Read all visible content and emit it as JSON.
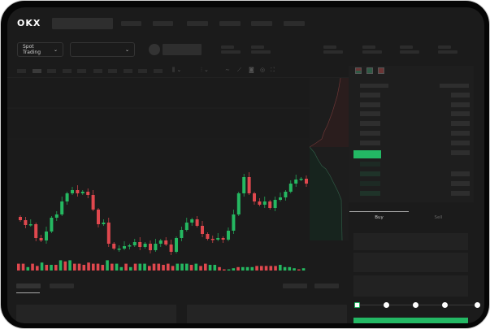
{
  "header": {
    "logo": "OKX"
  },
  "market_select": {
    "label": "Spot Trading"
  },
  "trade_tabs": {
    "buy": "Buy",
    "sell": "Sell"
  },
  "colors": {
    "up": "#25b861",
    "down": "#e0484e",
    "background": "#1b1b1b",
    "accent": "#23b864"
  },
  "chart": {
    "type": "candlestick",
    "closes": [
      117,
      111,
      112,
      95,
      92,
      103,
      120,
      124,
      140,
      150,
      154,
      150,
      152,
      148,
      130,
      112,
      114,
      88,
      82,
      82,
      85,
      86,
      90,
      84,
      88,
      80,
      88,
      92,
      87,
      78,
      95,
      105,
      114,
      118,
      110,
      100,
      94,
      93,
      95,
      93,
      104,
      124,
      150,
      170,
      150,
      140,
      136,
      140,
      132,
      142,
      145,
      152,
      162,
      167,
      168,
      162
    ],
    "volume": [
      6,
      6,
      3,
      6,
      4,
      7,
      5,
      5,
      5,
      9,
      8,
      9,
      6,
      6,
      5,
      7,
      6,
      6,
      5,
      9,
      6,
      6,
      3,
      6,
      3,
      6,
      6,
      6,
      4,
      6,
      6,
      5,
      6,
      4,
      6,
      6,
      6,
      5,
      6,
      4,
      6,
      5,
      5,
      3,
      1,
      1,
      2,
      3,
      3,
      3,
      3,
      4,
      4,
      4,
      4,
      4,
      5,
      3,
      3,
      2,
      1,
      2
    ],
    "volume_dir": [
      "d",
      "d",
      "u",
      "d",
      "d",
      "u",
      "d",
      "u",
      "d",
      "u",
      "d",
      "u",
      "d",
      "d",
      "d",
      "d",
      "d",
      "d",
      "d",
      "u",
      "d",
      "u",
      "u",
      "d",
      "u",
      "d",
      "u",
      "u",
      "d",
      "d",
      "d",
      "d",
      "d",
      "d",
      "u",
      "u",
      "u",
      "d",
      "u",
      "d",
      "d",
      "u",
      "u",
      "d",
      "d",
      "u",
      "u",
      "d",
      "u",
      "u",
      "u",
      "d",
      "d",
      "d",
      "d",
      "d",
      "u",
      "u",
      "u",
      "u",
      "d",
      "u"
    ]
  },
  "slider": {
    "value_percent": 0,
    "stops": 5
  }
}
